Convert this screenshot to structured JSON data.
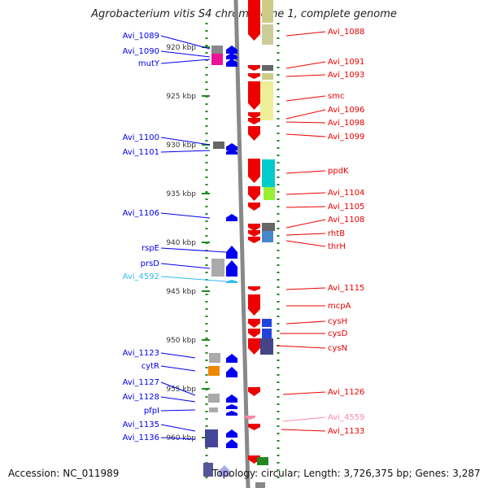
{
  "header": {
    "title": "Agrobacterium vitis S4 chromosome 1, complete genome"
  },
  "footer": {
    "accession": "Accession: NC_011989",
    "stats": "Topology: circular; Length: 3,726,375 bp; Genes: 3,287"
  },
  "map": {
    "ticks": [
      "920 kbp",
      "925 kbp",
      "930 kbp",
      "935 kbp",
      "940 kbp",
      "945 kbp",
      "950 kbp",
      "955 kbp",
      "960 kbp"
    ],
    "colors": {
      "forward": "#0000ee",
      "reverse": "#ee0000",
      "pseudo_forward": "#33bbee",
      "pseudo_reverse": "#ff88aa",
      "backbone": "#888888",
      "dots": "#228822"
    },
    "left_labels": [
      "Avi_1089",
      "Avi_1090",
      "mutY",
      "Avi_1100",
      "Avi_1101",
      "Avi_1106",
      "rspE",
      "prsD",
      "Avi_4592",
      "Avi_1123",
      "cytR",
      "Avi_1127",
      "Avi_1128",
      "pfpI",
      "Avi_1135",
      "Avi_1136"
    ],
    "right_labels": [
      "Avi_1088",
      "Avi_1091",
      "Avi_1093",
      "smc",
      "Avi_1096",
      "Avi_1098",
      "Avi_1099",
      "ppdK",
      "Avi_1104",
      "Avi_1105",
      "Avi_1108",
      "rhtB",
      "thrH",
      "Avi_1115",
      "mcpA",
      "cysH",
      "cysD",
      "cysN",
      "Avi_1126",
      "Avi_4559",
      "Avi_1133"
    ]
  }
}
